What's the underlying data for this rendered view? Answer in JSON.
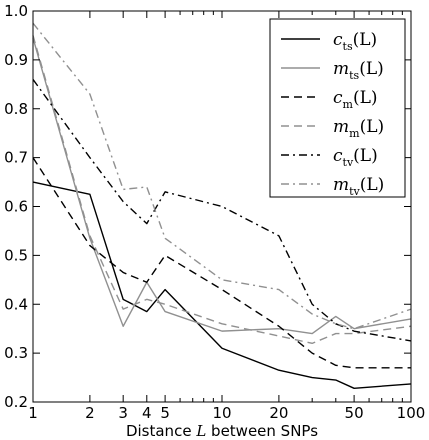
{
  "chart_data": {
    "type": "line",
    "x": [
      1,
      2,
      3,
      4,
      5,
      10,
      20,
      30,
      40,
      50,
      100
    ],
    "xscale": "log",
    "xlim": [
      1,
      100
    ],
    "ylim": [
      0.2,
      1.0
    ],
    "xticks": [
      "1",
      "2",
      "3",
      "4",
      "5",
      "10",
      "20",
      "50",
      "100"
    ],
    "yticks": [
      "0.2",
      "0.3",
      "0.4",
      "0.5",
      "0.6",
      "0.7",
      "0.8",
      "0.9",
      "1.0"
    ],
    "xlabel": {
      "pre": "Distance ",
      "var": "L",
      "post": " between SNPs"
    },
    "ylabel": "",
    "grid": false,
    "legend_position": "top-right",
    "series": [
      {
        "name": {
          "base": "c",
          "sub": "ts",
          "arg": "(L)"
        },
        "color": "#000000",
        "dash": "solid",
        "values": [
          0.65,
          0.625,
          0.41,
          0.385,
          0.43,
          0.31,
          0.265,
          0.25,
          0.245,
          0.228,
          0.237
        ]
      },
      {
        "name": {
          "base": "m",
          "sub": "ts",
          "arg": "(L)"
        },
        "color": "#909090",
        "dash": "solid",
        "values": [
          0.945,
          0.535,
          0.355,
          0.445,
          0.385,
          0.345,
          0.35,
          0.34,
          0.375,
          0.35,
          0.37
        ]
      },
      {
        "name": {
          "base": "c",
          "sub": "m",
          "arg": "(L)"
        },
        "color": "#000000",
        "dash": "dashed",
        "values": [
          0.7,
          0.52,
          0.465,
          0.445,
          0.5,
          0.43,
          0.355,
          0.3,
          0.275,
          0.27,
          0.27
        ]
      },
      {
        "name": {
          "base": "m",
          "sub": "m",
          "arg": "(L)"
        },
        "color": "#909090",
        "dash": "dashed",
        "values": [
          0.95,
          0.54,
          0.39,
          0.41,
          0.4,
          0.36,
          0.335,
          0.32,
          0.34,
          0.34,
          0.355
        ]
      },
      {
        "name": {
          "base": "c",
          "sub": "tv",
          "arg": "(L)"
        },
        "color": "#000000",
        "dash": "dashdot",
        "values": [
          0.86,
          0.7,
          0.61,
          0.565,
          0.63,
          0.6,
          0.54,
          0.4,
          0.36,
          0.345,
          0.325
        ]
      },
      {
        "name": {
          "base": "m",
          "sub": "tv",
          "arg": "(L)"
        },
        "color": "#909090",
        "dash": "dashdot",
        "values": [
          0.975,
          0.83,
          0.635,
          0.64,
          0.535,
          0.45,
          0.43,
          0.38,
          0.36,
          0.35,
          0.39
        ]
      }
    ]
  }
}
